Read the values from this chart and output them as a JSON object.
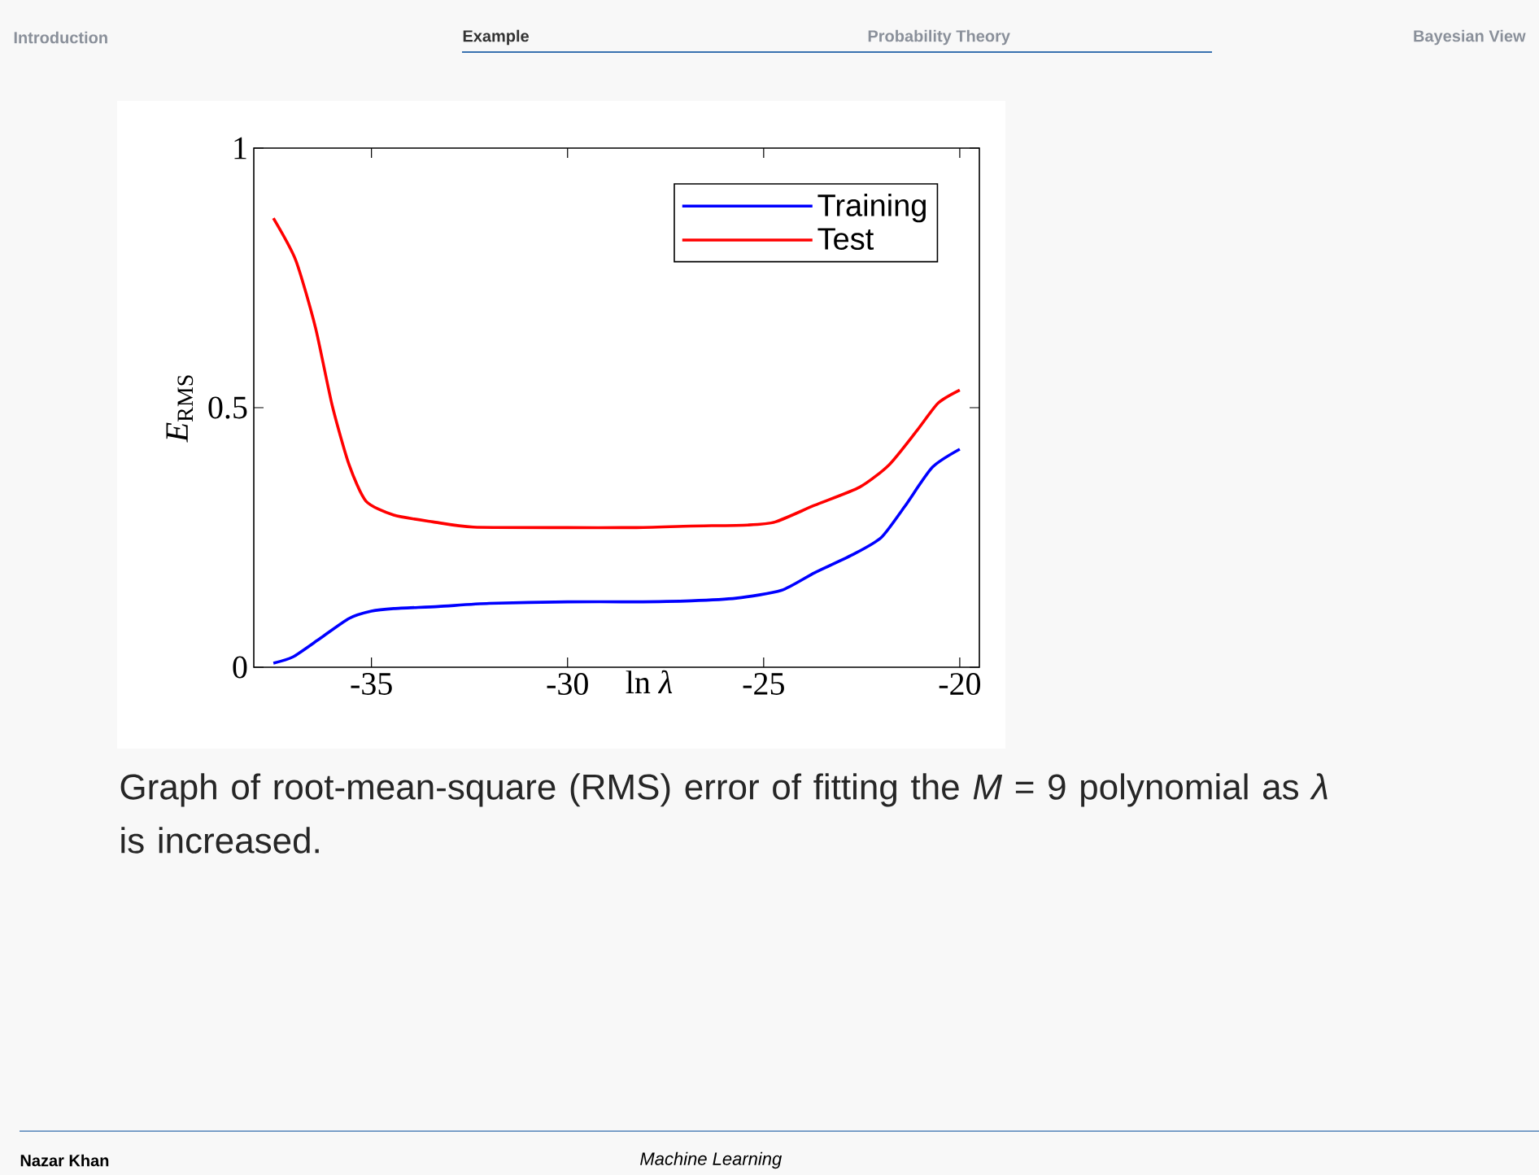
{
  "chart_data": {
    "type": "line",
    "xlabel": "ln *λ*",
    "ylabel": "*E*$_{RMS}$",
    "xlim": [
      -38,
      -19.5
    ],
    "ylim": [
      0,
      1
    ],
    "xticks": [
      -35,
      -30,
      -25,
      -20
    ],
    "yticks": [
      0,
      0.5,
      1
    ],
    "legend": "top right",
    "marker": "none",
    "series": [
      {
        "name": "Training",
        "color": "#0000ff",
        "x": [
          -37.5,
          -37.0,
          -36.3,
          -35.57,
          -35.0,
          -34.43,
          -33.3,
          -32.0,
          -30.0,
          -28.3,
          -26.85,
          -25.7,
          -24.55,
          -23.7,
          -22.7,
          -22.0,
          -21.4,
          -20.7,
          -20.0
        ],
        "values": [
          0.008,
          0.02,
          0.056,
          0.094,
          0.108,
          0.113,
          0.117,
          0.123,
          0.126,
          0.126,
          0.128,
          0.133,
          0.148,
          0.182,
          0.218,
          0.25,
          0.31,
          0.385,
          0.42
        ]
      },
      {
        "name": "Test",
        "color": "#ff0000",
        "x": [
          -37.5,
          -36.93,
          -36.43,
          -36.0,
          -35.57,
          -35.14,
          -34.43,
          -33.43,
          -32.4,
          -30.0,
          -28.3,
          -26.85,
          -25.4,
          -24.7,
          -23.7,
          -22.55,
          -21.8,
          -21.1,
          -20.55,
          -20.0
        ],
        "values": [
          0.865,
          0.784,
          0.655,
          0.504,
          0.39,
          0.32,
          0.293,
          0.28,
          0.27,
          0.269,
          0.269,
          0.272,
          0.274,
          0.28,
          0.312,
          0.347,
          0.39,
          0.455,
          0.509,
          0.534
        ]
      }
    ],
    "annotations": [
      "Introduction",
      "Example",
      "Probability Theory",
      "Bayesian View",
      "Graph of root-mean-square (RMS) error of fitting the *M* = 9 polynomial as *λ* is increased.",
      "Nazar Khan",
      "Machine Learning"
    ]
  }
}
